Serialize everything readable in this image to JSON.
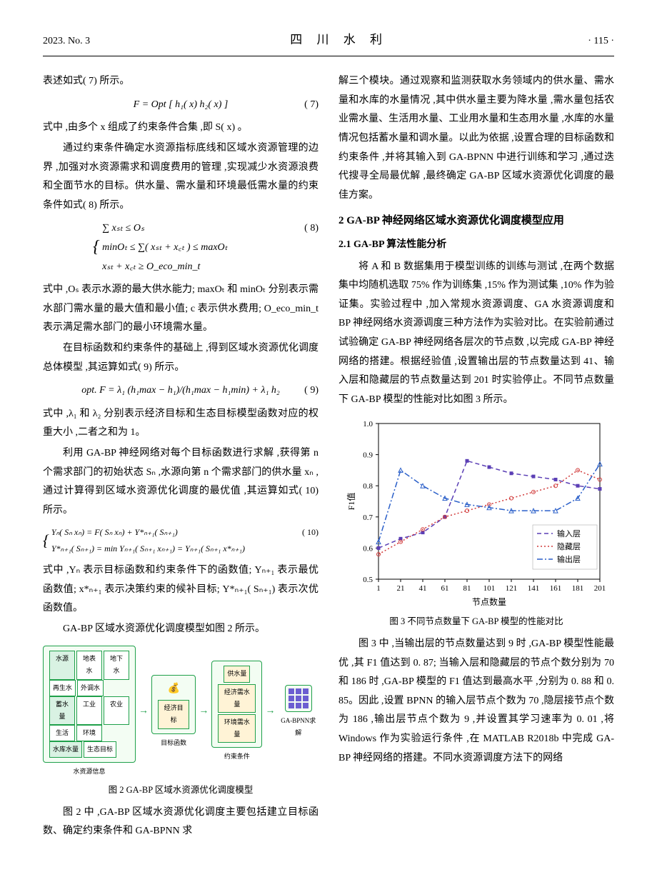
{
  "header": {
    "left": "2023. No. 3",
    "center": "四 川 水 利",
    "right": "· 115 ·"
  },
  "left_col": {
    "p1": "表述如式( 7) 所示。",
    "eq7": "F = Opt [ h₁( x)  h₂( x) ]",
    "eq7_num": "( 7)",
    "p2": "式中 ,由多个 x 组成了约束条件合集 ,即 S( x) 。",
    "p3": "通过约束条件确定水资源指标底线和区域水资源管理的边界 ,加强对水资源需求和调度费用的管理 ,实现减少水资源浪费和全面节水的目标。供水量、需水量和环境最低需水量的约束条件如式( 8) 所示。",
    "eq8_l1": "∑ xₛₜ ≤ Oₛ",
    "eq8_l2": "minOₜ ≤ ∑( xₛₜ + x꜀ₜ ) ≤ maxOₜ",
    "eq8_l3": "xₛₜ + x꜀ₜ ≥ O_eco_min_t",
    "eq8_num": "( 8)",
    "p4": "式中 ,Oₛ 表示水源的最大供水能力; maxOₜ 和 minOₜ 分别表示需水部门需水量的最大值和最小值; c 表示供水费用; O_eco_min_t 表示满足需水部门的最小环境需水量。",
    "p5": "在目标函数和约束条件的基础上 ,得到区域水资源优化调度总体模型 ,其运算如式( 9) 所示。",
    "eq9": "opt. F = λ₁ (h₁max − h₁)/(h₁max − h₁min) + λ₁ h₂",
    "eq9_num": "( 9)",
    "p6": "式中 ,λ₁ 和 λ₂ 分别表示经济目标和生态目标模型函数对应的权重大小 ,二者之和为 1。",
    "p7": "利用 GA-BP 神经网络对每个目标函数进行求解 ,获得第 n 个需求部门的初始状态 Sₙ ,水源向第 n 个需求部门的供水量 xₙ ,通过计算得到区域水资源优化调度的最优值 ,其运算如式( 10) 所示。",
    "eq10_l1": "Yₙ( Sₙ  xₙ) = F( Sₙ  xₙ) + Y*ₙ₊₁( Sₙ₊₁)",
    "eq10_l2": "Y*ₙ₊₁( Sₙ₊₁) = min Yₙ₊₁( Sₙ₊₁  xₙ₊₁) = Yₙ₊₁( Sₙ₊₁  x*ₙ₊₁)",
    "eq10_num": "( 10)",
    "p8": "式中 ,Yₙ 表示目标函数和约束条件下的函数值; Yₙ₊₁ 表示最优函数值; x*ₙ₊₁ 表示决策约束的候补目标; Y*ₙ₊₁( Sₙ₊₁) 表示次优函数值。",
    "p9": "GA-BP 区域水资源优化调度模型如图 2 所示。",
    "fig2": {
      "group1_title": "水资源信息",
      "group1_cells": [
        "水源",
        "地表水",
        "地下水",
        "再生水",
        "外调水",
        "蓄水量",
        "工业",
        "农业",
        "生活",
        "环境",
        "水库水量",
        "生态目标"
      ],
      "group2_title": "目标函数",
      "group2_cells": [
        "经济目标"
      ],
      "group3_title": "约束条件",
      "group3_cells": [
        "供水量",
        "经济需水量",
        "环境需水量"
      ],
      "group4_title": "GA-BPNN求解",
      "caption": "图 2  GA-BP 区域水资源优化调度模型"
    },
    "p10": "图 2 中 ,GA-BP 区域水资源优化调度主要包括建立目标函数、确定约束条件和 GA-BPNN 求"
  },
  "right_col": {
    "p1": "解三个模块。通过观察和监测获取水务领域内的供水量、需水量和水库的水量情况 ,其中供水量主要为降水量 ,需水量包括农业需水量、生活用水量、工业用水量和生态用水量 ,水库的水量情况包括蓄水量和调水量。以此为依据 ,设置合理的目标函数和约束条件 ,并将其输入到 GA-BPNN 中进行训练和学习 ,通过迭代搜寻全局最优解 ,最终确定 GA-BP 区域水资源优化调度的最佳方案。",
    "sec2": "2  GA-BP 神经网络区域水资源优化调度模型应用",
    "sec21": "2.1  GA-BP 算法性能分析",
    "p2": "将 A 和 B 数据集用于模型训练的训练与测试 ,在两个数据集中均随机选取 75% 作为训练集 ,15% 作为测试集 ,10% 作为验证集。实验过程中 ,加入常规水资源调度、GA 水资源调度和 BP 神经网络水资源调度三种方法作为实验对比。在实验前通过试验确定 GA-BP 神经网络各层次的节点数 ,以完成 GA-BP 神经网络的搭建。根据经验值 ,设置输出层的节点数量达到 41、输入层和隐藏层的节点数量达到 201 时实验停止。不同节点数量下 GA-BP 模型的性能对比如图 3 所示。",
    "fig3": {
      "type": "line",
      "xlabel": "节点数量",
      "ylabel": "F1值",
      "xlim": [
        1,
        201
      ],
      "ylim": [
        0.5,
        1.0
      ],
      "xticks": [
        1,
        21,
        41,
        61,
        81,
        101,
        121,
        141,
        161,
        181,
        201
      ],
      "yticks": [
        0.5,
        0.6,
        0.7,
        0.8,
        0.9,
        1.0
      ],
      "legend": [
        "输入层",
        "隐藏层",
        "输出层"
      ],
      "colors": {
        "input": "#5b3fb5",
        "hidden": "#d13a3a",
        "output": "#2a5fc9",
        "grid": "#e0e0e0",
        "axis": "#000000",
        "bg": "#ffffff"
      },
      "series": {
        "input": {
          "x": [
            1,
            21,
            41,
            61,
            81,
            101,
            121,
            141,
            161,
            181,
            201
          ],
          "y": [
            0.6,
            0.63,
            0.65,
            0.7,
            0.88,
            0.86,
            0.84,
            0.83,
            0.82,
            0.8,
            0.79
          ],
          "dash": "6 4"
        },
        "hidden": {
          "x": [
            1,
            21,
            41,
            61,
            81,
            101,
            121,
            141,
            161,
            181,
            201
          ],
          "y": [
            0.58,
            0.62,
            0.66,
            0.7,
            0.72,
            0.74,
            0.76,
            0.78,
            0.8,
            0.85,
            0.82
          ],
          "dash": "2 3"
        },
        "output": {
          "x": [
            1,
            21,
            41,
            61,
            81,
            101,
            121,
            141,
            161,
            181,
            201
          ],
          "y": [
            0.62,
            0.85,
            0.8,
            0.76,
            0.74,
            0.73,
            0.72,
            0.72,
            0.72,
            0.76,
            0.87
          ],
          "dash": "8 3 2 3"
        }
      },
      "caption": "图 3  不同节点数量下 GA-BP 模型的性能对比"
    },
    "p3": "图 3 中 ,当输出层的节点数量达到 9 时 ,GA-BP 模型性能最优 ,其 F1 值达到 0. 87; 当输入层和隐藏层的节点个数分别为 70 和 186 时 ,GA-BP 模型的 F1 值达到最高水平 ,分别为 0. 88 和 0. 85。因此 ,设置 BPNN 的输入层节点个数为 70 ,隐层接节点个数为 186 ,输出层节点个数为 9 ,并设置其学习速率为 0. 01 ,将 Windows 作为实验运行条件 ,在 MATLAB R2018b 中完成 GA-BP 神经网络的搭建。不同水资源调度方法下的网络"
  }
}
